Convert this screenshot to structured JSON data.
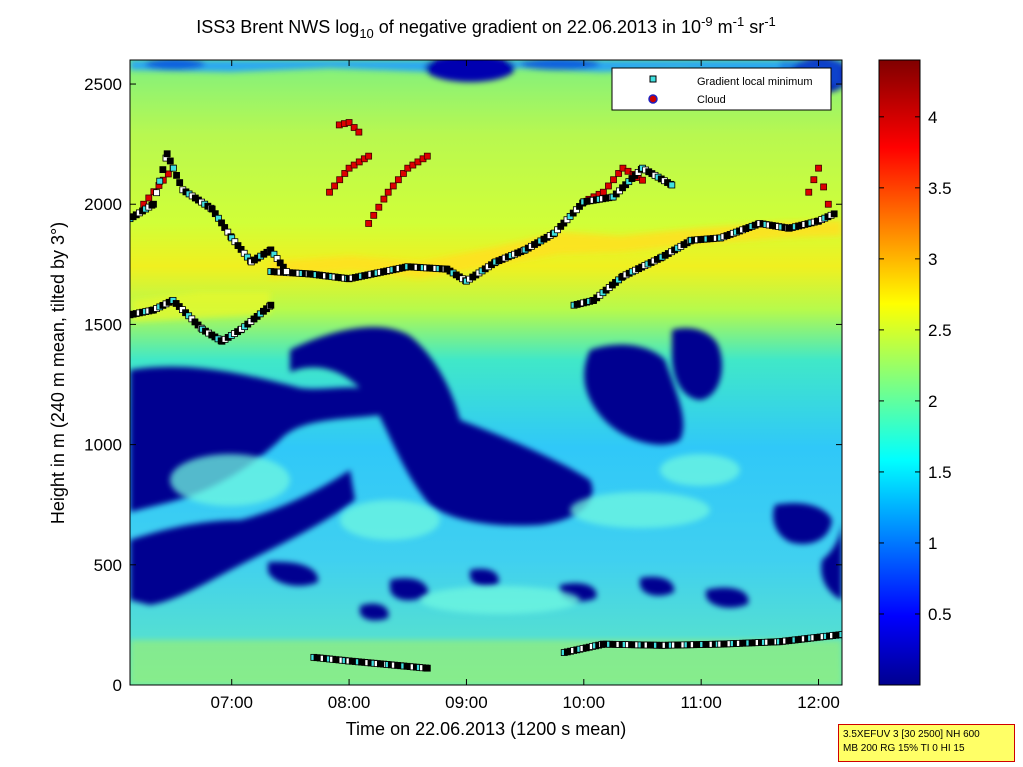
{
  "chart_data": {
    "type": "heatmap",
    "title": {
      "part1": "ISS3 Brent NWS log",
      "sub1": "10",
      "part2": " of negative gradient on 22.06.2013 in 10",
      "sup1": "-9",
      "part3": " m",
      "sup2": "-1",
      "part4": " sr",
      "sup3": "-1"
    },
    "xlabel": "Time on 22.06.2013 (1200 s mean)",
    "ylabel": "Height in m (240 m mean, tilted by 3°)",
    "xlim": [
      "06:08",
      "12:12"
    ],
    "ylim": [
      0,
      2600
    ],
    "x_ticks": [
      "07:00",
      "08:00",
      "09:00",
      "10:00",
      "11:00",
      "12:00"
    ],
    "y_ticks": [
      "0",
      "500",
      "1000",
      "1500",
      "2000",
      "2500"
    ],
    "colorbar": {
      "range": [
        0,
        4.4
      ],
      "ticks": [
        "0.5",
        "1",
        "1.5",
        "2",
        "2.5",
        "3",
        "3.5",
        "4"
      ],
      "colormap": "jet"
    },
    "legend": {
      "placement": "top-right",
      "entries": [
        {
          "label": "Gradient local minimum",
          "marker": "square",
          "color": "#40e0e0"
        },
        {
          "label": "Cloud",
          "marker": "circle",
          "color": "#cc0000"
        }
      ]
    },
    "series": [
      {
        "name": "Gradient local minimum",
        "segments": [
          {
            "time": [
              "06:08",
              "06:20",
              "06:30",
              "06:45",
              "06:55",
              "07:05",
              "07:20"
            ],
            "height": [
              1540,
              1560,
              1600,
              1480,
              1430,
              1480,
              1580
            ]
          },
          {
            "time": [
              "07:20",
              "07:40",
              "08:00",
              "08:30",
              "08:50",
              "09:00",
              "09:15",
              "09:30",
              "09:45",
              "10:00",
              "10:15",
              "10:30",
              "10:45"
            ],
            "height": [
              1720,
              1710,
              1690,
              1740,
              1730,
              1680,
              1760,
              1810,
              1880,
              2010,
              2030,
              2150,
              2080
            ]
          },
          {
            "time": [
              "09:55",
              "10:05",
              "10:20",
              "10:40",
              "10:55",
              "11:10",
              "11:30",
              "11:45",
              "12:00",
              "12:08"
            ],
            "height": [
              1580,
              1600,
              1700,
              1780,
              1850,
              1860,
              1920,
              1900,
              1930,
              1960
            ]
          },
          {
            "time": [
              "06:08",
              "06:20",
              "06:27",
              "06:35",
              "06:50",
              "07:00",
              "07:10",
              "07:20",
              "07:28"
            ],
            "height": [
              1940,
              2000,
              2210,
              2060,
              1980,
              1860,
              1760,
              1810,
              1720
            ]
          },
          {
            "time": [
              "07:42",
              "08:00",
              "08:20",
              "08:40"
            ],
            "height": [
              115,
              100,
              85,
              70
            ]
          },
          {
            "time": [
              "09:50",
              "10:10",
              "10:40",
              "11:10",
              "11:40",
              "12:12"
            ],
            "height": [
              135,
              170,
              165,
              170,
              180,
              210
            ]
          }
        ]
      },
      {
        "name": "Cloud",
        "segments": [
          {
            "time": [
              "06:15",
              "06:25",
              "06:30"
            ],
            "height": [
              2000,
              2100,
              2150
            ]
          },
          {
            "time": [
              "07:55",
              "08:00",
              "08:05"
            ],
            "height": [
              2330,
              2340,
              2300
            ]
          },
          {
            "time": [
              "07:50",
              "08:00",
              "08:10"
            ],
            "height": [
              2050,
              2150,
              2200
            ]
          },
          {
            "time": [
              "08:10",
              "08:20",
              "08:30",
              "08:40"
            ],
            "height": [
              1920,
              2050,
              2150,
              2200
            ]
          },
          {
            "time": [
              "10:00",
              "10:10",
              "10:20",
              "10:30"
            ],
            "height": [
              2010,
              2050,
              2150,
              2100
            ]
          },
          {
            "time": [
              "11:55",
              "12:00",
              "12:05"
            ],
            "height": [
              2050,
              2150,
              2000
            ]
          }
        ]
      }
    ]
  },
  "info_box": {
    "line1": "3.5XEFUV 3 [30 2500] NH 600",
    "line2": "MB 200 RG 15% TI 0 HI 15"
  }
}
